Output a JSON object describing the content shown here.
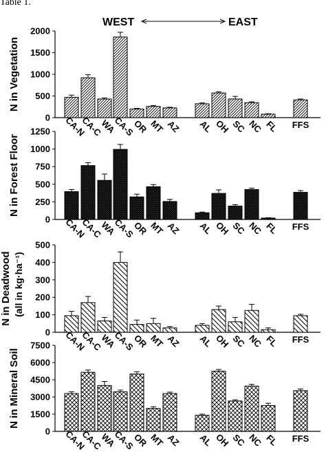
{
  "page_label": "Table 1.",
  "header": {
    "left": "WEST",
    "right": "EAST"
  },
  "categories": [
    "CA-N",
    "CA-C",
    "WA",
    "CA-S",
    "OR",
    "MT",
    "AZ",
    "AL",
    "OH",
    "SC",
    "NC",
    "FL",
    "FFS"
  ],
  "chart_data": [
    {
      "type": "bar",
      "pattern": "hatch-right",
      "ylabel": "N in Vegetation",
      "ylabel2": "",
      "ylim": [
        0,
        2000
      ],
      "yticks": [
        0,
        500,
        1000,
        1500,
        2000
      ],
      "categories": [
        "CA-N",
        "CA-C",
        "WA",
        "CA-S",
        "OR",
        "MT",
        "AZ",
        "AL",
        "OH",
        "SC",
        "NC",
        "FL",
        "FFS"
      ],
      "values": [
        470,
        920,
        430,
        1860,
        200,
        260,
        225,
        320,
        570,
        430,
        345,
        80,
        410
      ],
      "errors": [
        50,
        70,
        25,
        110,
        15,
        20,
        15,
        20,
        25,
        60,
        20,
        10,
        20
      ]
    },
    {
      "type": "bar",
      "pattern": "crosshatch-dense",
      "ylabel": "N in Forest Floor",
      "ylabel2": "",
      "ylim": [
        0,
        1250
      ],
      "yticks": [
        0,
        250,
        500,
        750,
        1000,
        1250
      ],
      "categories": [
        "CA-N",
        "CA-C",
        "WA",
        "CA-S",
        "OR",
        "MT",
        "AZ",
        "AL",
        "OH",
        "SC",
        "NC",
        "FL",
        "FFS"
      ],
      "values": [
        395,
        765,
        555,
        995,
        320,
        465,
        255,
        95,
        370,
        190,
        425,
        20,
        385
      ],
      "errors": [
        30,
        40,
        90,
        70,
        40,
        30,
        30,
        10,
        50,
        20,
        20,
        5,
        25
      ]
    },
    {
      "type": "bar",
      "pattern": "hatch-left",
      "ylabel": "N in Deadwood",
      "ylabel2": "(all in kg·ha⁻¹)",
      "ylim": [
        0,
        500
      ],
      "yticks": [
        0,
        100,
        200,
        300,
        400,
        500
      ],
      "categories": [
        "CA-N",
        "CA-C",
        "WA",
        "CA-S",
        "OR",
        "MT",
        "AZ",
        "AL",
        "OH",
        "SC",
        "NC",
        "FL",
        "FFS"
      ],
      "values": [
        95,
        170,
        65,
        400,
        45,
        50,
        25,
        40,
        130,
        60,
        125,
        15,
        95
      ],
      "errors": [
        25,
        35,
        20,
        60,
        25,
        30,
        8,
        10,
        20,
        25,
        35,
        10,
        8
      ]
    },
    {
      "type": "bar",
      "pattern": "diamond",
      "ylabel": "N in Mineral Soil",
      "ylabel2": "",
      "ylim": [
        0,
        7500
      ],
      "yticks": [
        0,
        1500,
        3000,
        4500,
        6000,
        7500
      ],
      "categories": [
        "CA-N",
        "CA-C",
        "WA",
        "CA-S",
        "OR",
        "MT",
        "AZ",
        "AL",
        "OH",
        "SC",
        "NC",
        "FL",
        "FFS"
      ],
      "values": [
        3300,
        5150,
        4000,
        3450,
        5000,
        2000,
        3300,
        1400,
        5250,
        2650,
        3950,
        2250,
        3550
      ],
      "errors": [
        150,
        200,
        350,
        150,
        200,
        150,
        120,
        100,
        150,
        100,
        150,
        200,
        150
      ]
    }
  ]
}
